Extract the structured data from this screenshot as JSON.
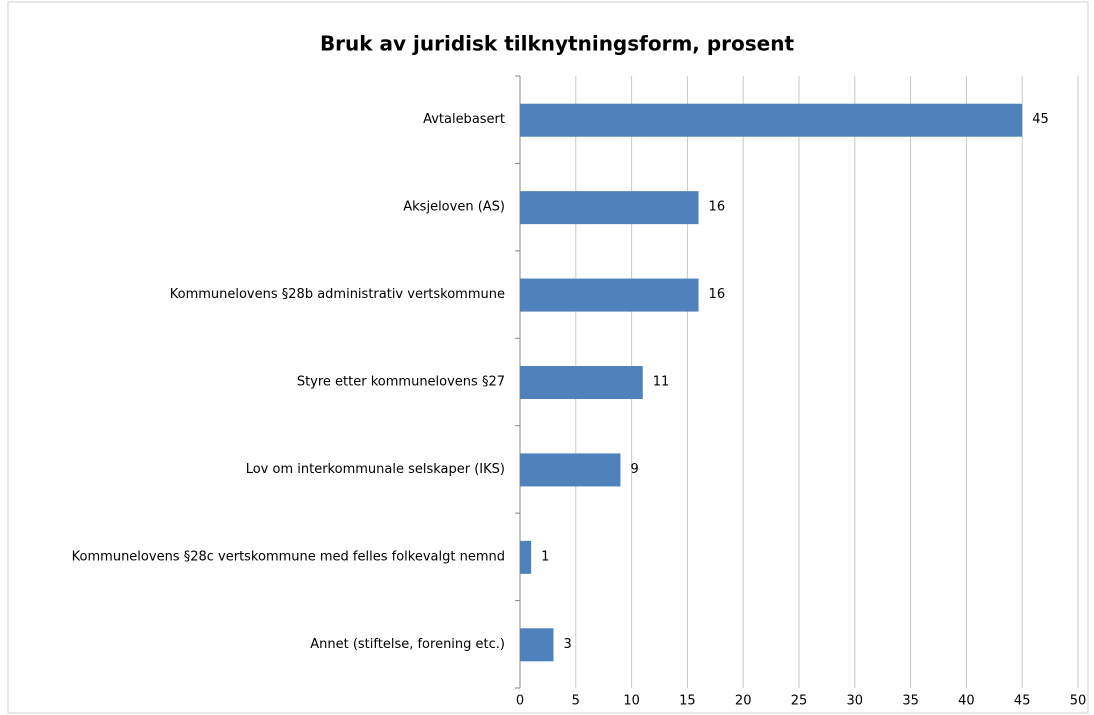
{
  "chart_data": {
    "type": "bar",
    "orientation": "horizontal",
    "title": "Bruk av juridisk tilknytningsform, prosent",
    "categories": [
      "Avtalebasert",
      "Aksjeloven (AS)",
      "Kommunelovens §28b administrativ vertskommune",
      "Styre etter kommunelovens §27",
      "Lov om interkommunale selskaper (IKS)",
      "Kommunelovens §28c vertskommune med felles folkevalgt nemnd",
      "Annet (stiftelse, forening etc.)"
    ],
    "values": [
      45,
      16,
      16,
      11,
      9,
      1,
      3
    ],
    "color": "#4f81bd",
    "xlim": [
      0,
      50
    ],
    "xticks": [
      0,
      5,
      10,
      15,
      20,
      25,
      30,
      35,
      40,
      45,
      50
    ],
    "grid": true
  }
}
